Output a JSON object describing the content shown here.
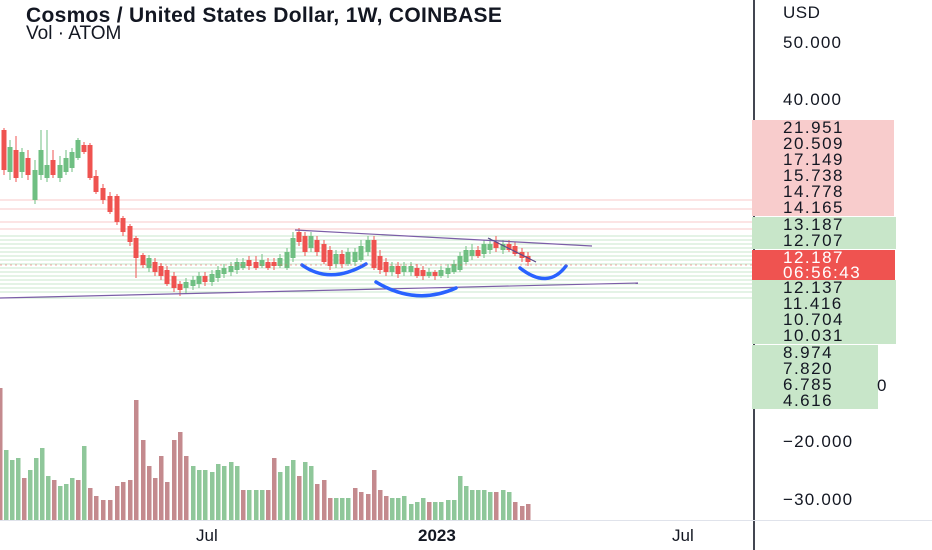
{
  "header": {
    "title": "Cosmos / United States Dollar, 1W, COINBASE",
    "subtitle": "Vol · ATOM"
  },
  "price_axis": {
    "currency": "USD",
    "ticks": [
      "50.000",
      "40.000",
      "−20.000",
      "−30.000"
    ],
    "red_labels": [
      "21.951",
      "20.509",
      "17.149",
      "15.738",
      "14.778",
      "14.165"
    ],
    "green_labels": [
      "13.187",
      "12.707",
      "12.137",
      "11.416",
      "10.704",
      "10.031",
      "8.974",
      "7.820",
      "6.785",
      "4.616"
    ],
    "current_price": "12.187",
    "countdown": "06:56:43",
    "zero_stub": "0"
  },
  "time_axis": {
    "labels": [
      "Jul",
      "2023",
      "Jul"
    ]
  },
  "colors": {
    "up": "#6fbf82",
    "down": "#ef5350",
    "vol_up": "#8fc79a",
    "vol_down": "#c48a8e",
    "current_badge": "#ef5350",
    "annotation_curve": "#2962ff",
    "trendline": "#7b5ea7"
  },
  "chart_data": {
    "type": "candlestick",
    "title": "Cosmos / United States Dollar, 1W, COINBASE",
    "series_label": "Vol · ATOM",
    "y_axis_ticks": [
      50,
      40,
      -20,
      -30
    ],
    "horizontal_levels": [
      21.951,
      20.509,
      17.149,
      15.738,
      14.778,
      14.165,
      13.187,
      12.707,
      12.187,
      12.137,
      11.416,
      10.704,
      10.031,
      8.974,
      7.82,
      6.785,
      4.616
    ],
    "last_price": 12.187,
    "x_labels": [
      "Jul",
      "2023",
      "Jul"
    ],
    "annotations": [
      "descending trendline",
      "ascending trendline",
      "blue arc drawings"
    ]
  }
}
